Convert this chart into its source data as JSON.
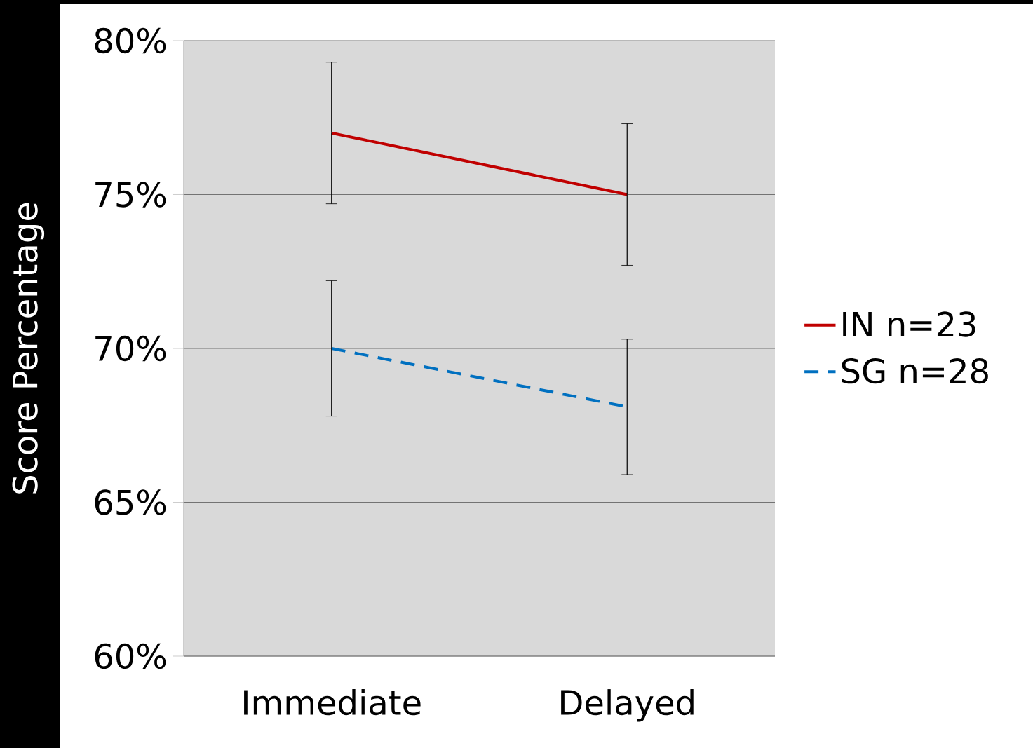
{
  "chart_data": {
    "type": "line",
    "ylabel": "Score Percentage",
    "categories": [
      "Immediate",
      "Delayed"
    ],
    "series": [
      {
        "name": "IN n=23",
        "color": "#c00000",
        "values": [
          77,
          75
        ],
        "errors": [
          2.3,
          2.3
        ],
        "line_style": "solid"
      },
      {
        "name": "SG n=28",
        "color": "#0070c0",
        "values": [
          70,
          68.1
        ],
        "errors": [
          2.2,
          2.2
        ],
        "line_style": "dashed"
      }
    ],
    "ylim": [
      60,
      80
    ],
    "yticks": [
      {
        "value": 60,
        "label": "60%"
      },
      {
        "value": 65,
        "label": "65%"
      },
      {
        "value": 70,
        "label": "70%"
      },
      {
        "value": 75,
        "label": "75%"
      },
      {
        "value": 80,
        "label": "80%"
      }
    ],
    "grid": "y",
    "legend": "right",
    "marker": "none"
  }
}
